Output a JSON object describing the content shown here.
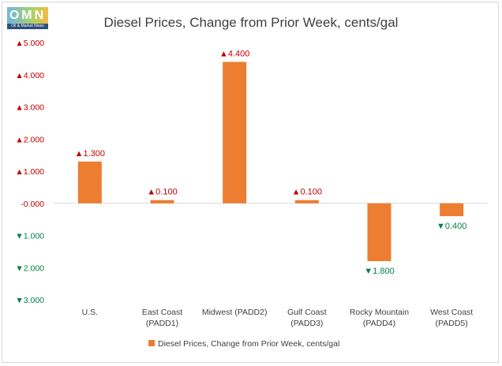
{
  "logo": {
    "letters": "OMN",
    "tagline": "Oil & Market News"
  },
  "chart_data": {
    "type": "bar",
    "title": "Diesel Prices, Change from Prior Week, cents/gal",
    "categories": [
      [
        "U.S."
      ],
      [
        "East Coast",
        "(PADD1)"
      ],
      [
        "Midwest (PADD2)"
      ],
      [
        "Gulf Coast",
        "(PADD3)"
      ],
      [
        "Rocky Mountain",
        "(PADD4)"
      ],
      [
        "West Coast",
        "(PADD5)"
      ]
    ],
    "values": [
      1.3,
      0.1,
      4.4,
      0.1,
      -1.8,
      -0.4
    ],
    "data_labels": [
      "1.300",
      "0.100",
      "4.400",
      "0.100",
      "1.800",
      "0.400"
    ],
    "yticks": [
      5,
      4,
      3,
      2,
      1,
      0,
      -1,
      -2,
      -3
    ],
    "ytick_labels": [
      "5.000",
      "4.000",
      "3.000",
      "2.000",
      "1.000",
      "0.000",
      "1.000",
      "2.000",
      "3.000"
    ],
    "ylim": [
      -3,
      5
    ],
    "legend": "Diesel Prices, Change from Prior Week, cents/gal",
    "legend_position": "bottom",
    "grid": false,
    "colors": {
      "bar": "#ED7D31",
      "up": "#C00000",
      "down": "#00804A",
      "axis": "#D9D9D9"
    },
    "symbols": {
      "up": "▲",
      "down": "▼"
    }
  }
}
